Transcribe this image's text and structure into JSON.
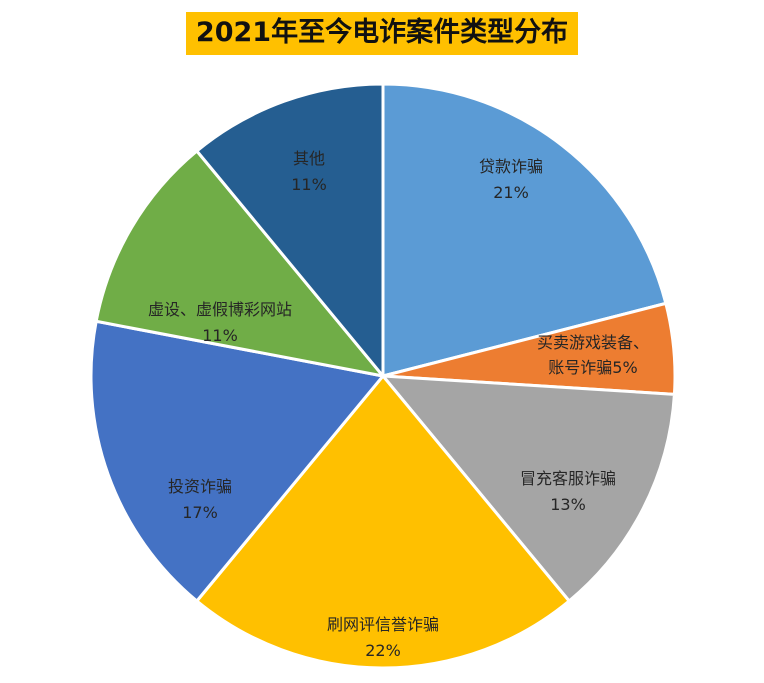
{
  "chart_data": {
    "type": "pie",
    "title": "2021年至今电诈案件类型分布",
    "slices": [
      {
        "label": "贷款诈骗",
        "value": 21,
        "value_label": "21%",
        "color": "#5b9bd5"
      },
      {
        "label": "买卖游戏装备、",
        "label2": "账号诈骗",
        "value": 5,
        "value_label": "5%",
        "color": "#ed7d31"
      },
      {
        "label": "冒充客服诈骗",
        "value": 13,
        "value_label": "13%",
        "color": "#a5a5a5"
      },
      {
        "label": "刷网评信誉诈骗",
        "value": 22,
        "value_label": "22%",
        "color": "#ffc000"
      },
      {
        "label": "投资诈骗",
        "value": 17,
        "value_label": "17%",
        "color": "#4472c4"
      },
      {
        "label": "虚设、虚假博彩网站",
        "value": 11,
        "value_label": "11%",
        "color": "#70ad47"
      },
      {
        "label": "其他",
        "value": 11,
        "value_label": "11%",
        "color": "#255e91"
      }
    ]
  }
}
